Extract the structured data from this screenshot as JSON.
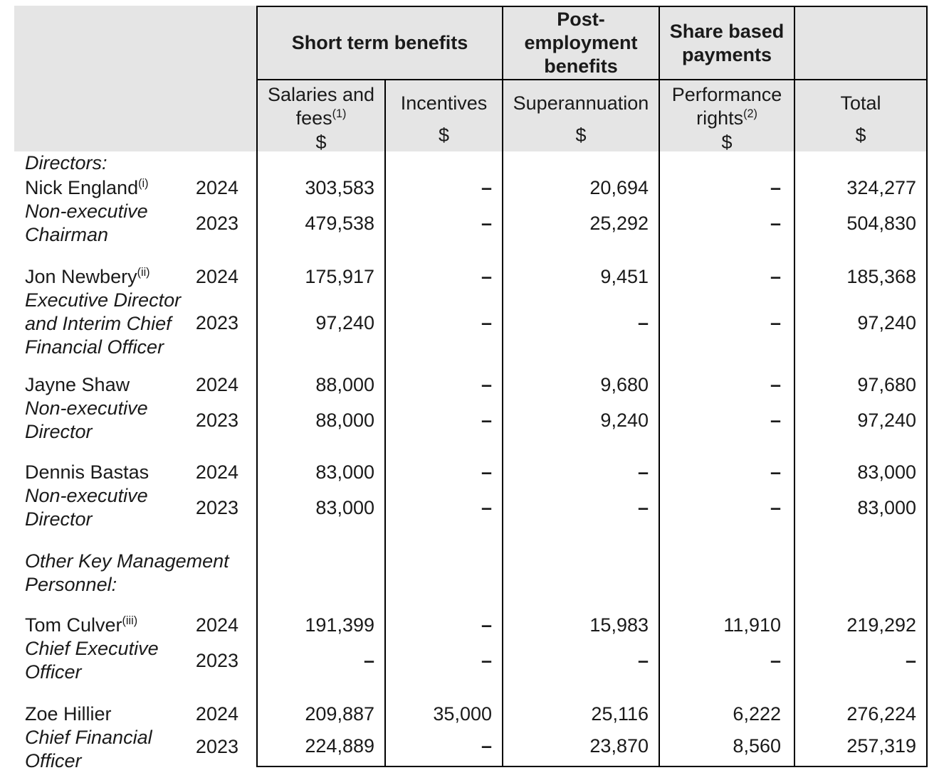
{
  "document": {
    "kind": "remuneration-table",
    "colors": {
      "header_bg": "#e5e5e5",
      "border": "#000000",
      "text": "#1a1a1a"
    }
  },
  "header": {
    "groups": [
      {
        "label": "Short term benefits"
      },
      {
        "label": "Post-employment benefits"
      },
      {
        "label": "Share based payments"
      }
    ],
    "columns": [
      {
        "label": "Salaries and fees",
        "marker": "(1)",
        "unit": "$"
      },
      {
        "label": "Incentives",
        "unit": "$"
      },
      {
        "label": "Superannuation",
        "unit": "$"
      },
      {
        "label": "Performance rights",
        "marker": "(2)",
        "unit": "$"
      },
      {
        "label": "Total",
        "unit": "$"
      }
    ]
  },
  "sections": {
    "directors": "Directors:",
    "okmp_line1": "Other Key Management",
    "okmp_line2": "Personnel:"
  },
  "people": [
    {
      "name": "Nick England",
      "marker": "(i)",
      "title_lines": [
        "Non-executive",
        "Chairman"
      ],
      "rows": [
        {
          "year": "2024",
          "values": [
            "303,583",
            "–",
            "20,694",
            "–",
            "324,277"
          ]
        },
        {
          "year": "2023",
          "values": [
            "479,538",
            "–",
            "25,292",
            "–",
            "504,830"
          ]
        }
      ]
    },
    {
      "name": "Jon Newbery",
      "marker": "(ii)",
      "title_lines": [
        "Executive Director",
        "and Interim Chief",
        "Financial Officer"
      ],
      "rows": [
        {
          "year": "2024",
          "values": [
            "175,917",
            "–",
            "9,451",
            "–",
            "185,368"
          ]
        },
        {
          "year": "2023",
          "values": [
            "97,240",
            "–",
            "–",
            "–",
            "97,240"
          ]
        }
      ]
    },
    {
      "name": "Jayne Shaw",
      "title_lines": [
        "Non-executive",
        "Director"
      ],
      "rows": [
        {
          "year": "2024",
          "values": [
            "88,000",
            "–",
            "9,680",
            "–",
            "97,680"
          ]
        },
        {
          "year": "2023",
          "values": [
            "88,000",
            "–",
            "9,240",
            "–",
            "97,240"
          ]
        }
      ]
    },
    {
      "name": "Dennis Bastas",
      "title_lines": [
        "Non-executive",
        "Director"
      ],
      "rows": [
        {
          "year": "2024",
          "values": [
            "83,000",
            "–",
            "–",
            "–",
            "83,000"
          ]
        },
        {
          "year": "2023",
          "values": [
            "83,000",
            "–",
            "–",
            "–",
            "83,000"
          ]
        }
      ]
    },
    {
      "name": "Tom Culver",
      "marker": "(iii)",
      "title_lines": [
        "Chief Executive",
        "Officer"
      ],
      "rows": [
        {
          "year": "2024",
          "values": [
            "191,399",
            "–",
            "15,983",
            "11,910",
            "219,292"
          ]
        },
        {
          "year": "2023",
          "values": [
            "–",
            "–",
            "–",
            "–",
            "–"
          ]
        }
      ]
    },
    {
      "name": "Zoe Hillier",
      "title_lines": [
        "Chief Financial",
        "Officer"
      ],
      "rows": [
        {
          "year": "2024",
          "values": [
            "209,887",
            "35,000",
            "25,116",
            "6,222",
            "276,224"
          ]
        },
        {
          "year": "2023",
          "values": [
            "224,889",
            "–",
            "23,870",
            "8,560",
            "257,319"
          ]
        }
      ]
    }
  ]
}
